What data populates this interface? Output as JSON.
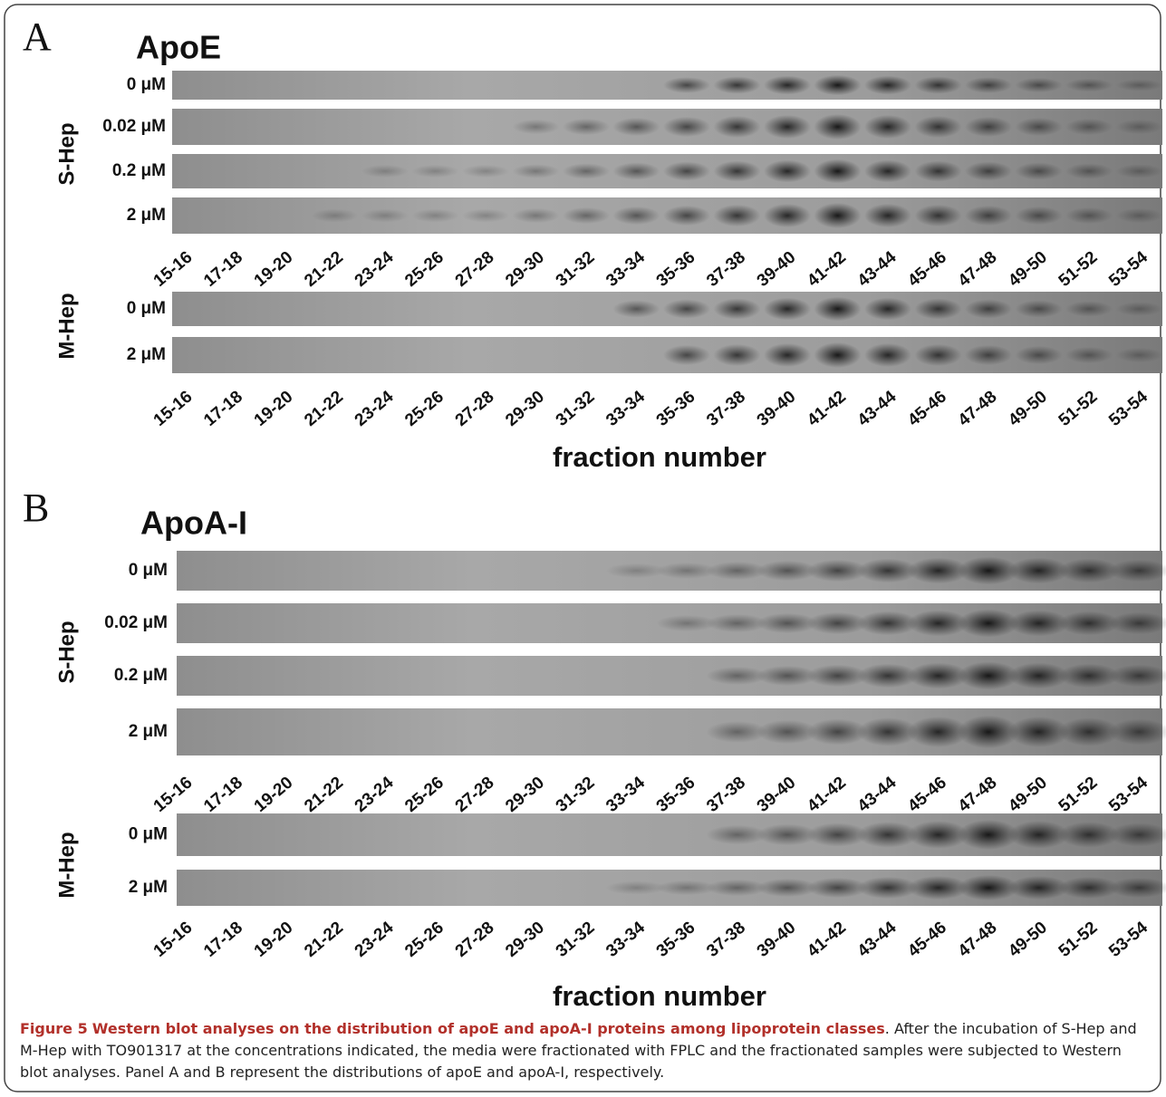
{
  "panels": [
    {
      "letter": "A",
      "protein": "ApoE",
      "groups": [
        {
          "name": "S-Hep",
          "rows": [
            "0 μM",
            "0.02 μM",
            "0.2 μM",
            "2 μM"
          ]
        },
        {
          "name": "M-Hep",
          "rows": [
            "0 μM",
            "2 μM"
          ]
        }
      ],
      "axis_label": "fraction number"
    },
    {
      "letter": "B",
      "protein": "ApoA-I",
      "groups": [
        {
          "name": "S-Hep",
          "rows": [
            "0 μM",
            "0.02 μM",
            "0.2 μM",
            "2 μM"
          ]
        },
        {
          "name": "M-Hep",
          "rows": [
            "0 μM",
            "2 μM"
          ]
        }
      ],
      "axis_label": "fraction number"
    }
  ],
  "fractions": [
    "15-16",
    "17-18",
    "19-20",
    "21-22",
    "23-24",
    "25-26",
    "27-28",
    "29-30",
    "31-32",
    "33-34",
    "35-36",
    "37-38",
    "39-40",
    "41-42",
    "43-44",
    "45-46",
    "47-48",
    "49-50",
    "51-52",
    "53-54"
  ],
  "caption": {
    "label": "Figure 5",
    "title": "Western blot analyses on the distribution of apoE and apoA-I proteins among lipoprotein classes",
    "text": ". After the incubation of S-Hep and M-Hep with TO901317 at the concentrations indicated, the media were fractionated with FPLC and the fractionated samples were subjected to Western blot analyses. Panel A and B represent the distributions of apoE and apoA-I, respectively."
  }
}
